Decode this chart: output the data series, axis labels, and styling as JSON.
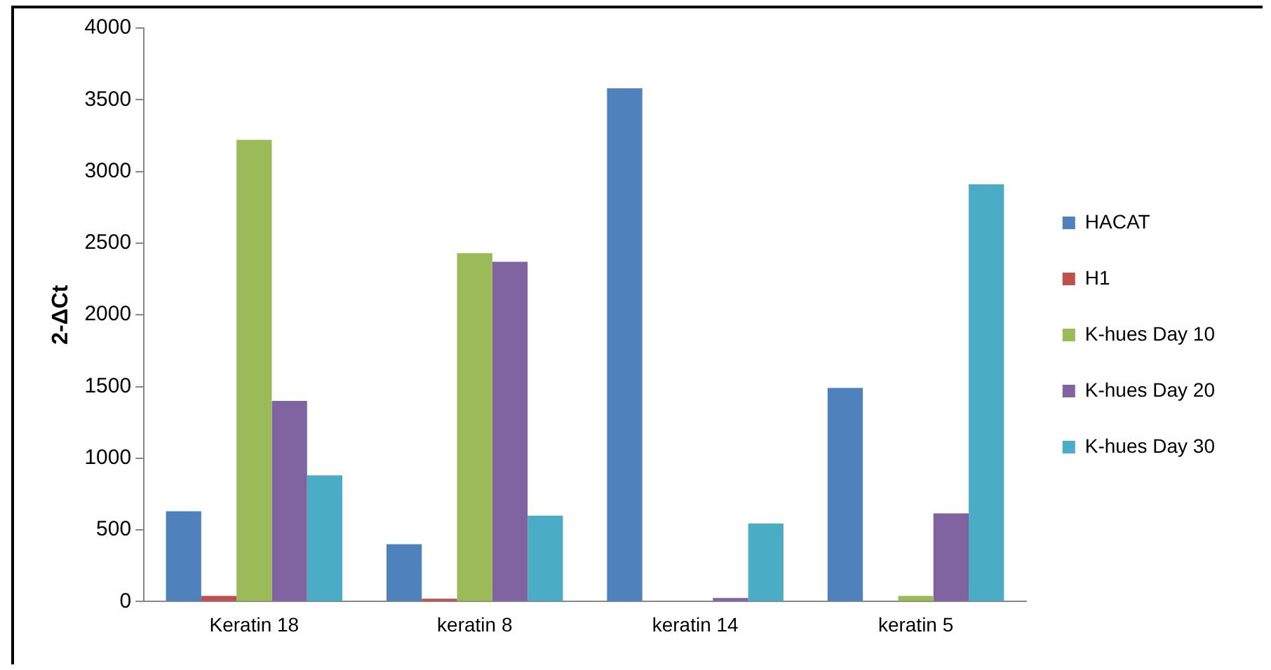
{
  "chart_data": {
    "type": "bar",
    "ylabel": "2-ΔCt",
    "categories": [
      "Keratin 18",
      "keratin 8",
      "keratin 14",
      "keratin 5"
    ],
    "series": [
      {
        "name": "HACAT",
        "color": "#4f81bd",
        "values": [
          630,
          400,
          3580,
          1490
        ]
      },
      {
        "name": "H1",
        "color": "#c0504d",
        "values": [
          40,
          20,
          0,
          0
        ]
      },
      {
        "name": "K-hues Day 10",
        "color": "#9bbb59",
        "values": [
          3220,
          2430,
          0,
          40
        ]
      },
      {
        "name": "K-hues Day 20",
        "color": "#8064a2",
        "values": [
          1400,
          2370,
          25,
          615
        ]
      },
      {
        "name": "K-hues Day 30",
        "color": "#4bacc6",
        "values": [
          880,
          600,
          545,
          2910
        ]
      }
    ],
    "ylim": [
      0,
      4000
    ],
    "yticks": [
      0,
      500,
      1000,
      1500,
      2000,
      2500,
      3000,
      3500,
      4000
    ],
    "grid": false,
    "legend": "right"
  }
}
